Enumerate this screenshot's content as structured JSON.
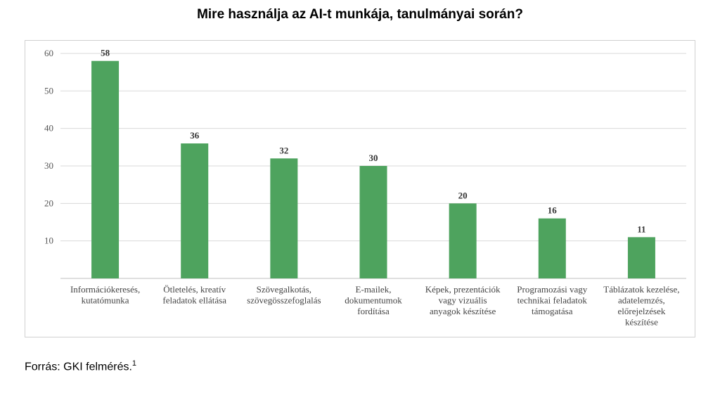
{
  "source_text": "Forrás: GKI felmérés.",
  "source_footnote": "1",
  "chart_data": {
    "type": "bar",
    "title": "Mire használja az AI-t munkája, tanulmányai során?",
    "categories": [
      [
        "Információkeresés,",
        "kutatómunka"
      ],
      [
        "Ötletelés, kreatív",
        "feladatok ellátása"
      ],
      [
        "Szövegalkotás,",
        "szövegösszefoglalás"
      ],
      [
        "E-mailek,",
        "dokumentumok",
        "fordítása"
      ],
      [
        "Képek, prezentációk",
        "vagy vizuális",
        "anyagok készítése"
      ],
      [
        "Programozási vagy",
        "technikai feladatok",
        "támogatása"
      ],
      [
        "Táblázatok kezelése,",
        "adatelemzés,",
        "előrejelzések",
        "készítése"
      ]
    ],
    "values": [
      58,
      36,
      32,
      30,
      20,
      16,
      11
    ],
    "ylim": [
      0,
      60
    ],
    "yticks": [
      10,
      20,
      30,
      40,
      50,
      60
    ],
    "grid": true,
    "bar_color": "#4ea35e",
    "xlabel": "",
    "ylabel": ""
  }
}
